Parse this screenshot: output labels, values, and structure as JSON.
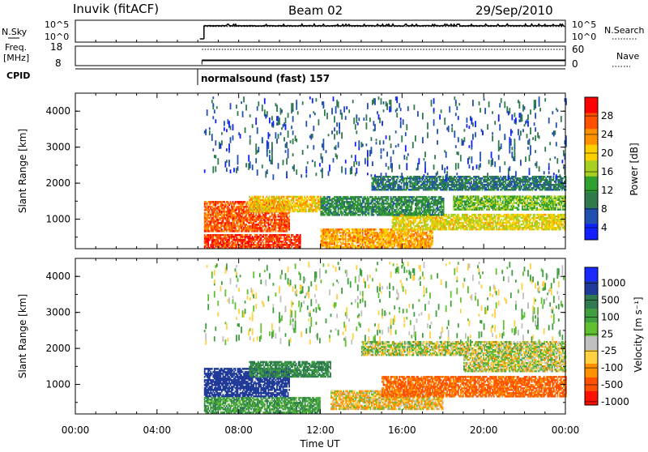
{
  "header": {
    "station": "Inuvik (fitACF)",
    "beam": "Beam 02",
    "date": "29/Sep/2010"
  },
  "summary": {
    "nsky_label": "N.Sky",
    "nsky_ticks": [
      "10^5",
      "10^0"
    ],
    "freq_label": "Freq.",
    "freq_unit": "[MHz]",
    "freq_ticks": [
      "18",
      "8"
    ],
    "cpid_label": "CPID",
    "nsearch_label": "N.Search",
    "nsearch_ticks": [
      "10^5",
      "10^0"
    ],
    "nave_label": "Nave",
    "nave_ticks": [
      "60",
      "0"
    ],
    "cpid_text": "normalsound (fast) 157"
  },
  "axes": {
    "x_ticks": [
      "00:00",
      "04:00",
      "08:00",
      "12:00",
      "16:00",
      "20:00",
      "00:00"
    ],
    "xlabel": "Time UT",
    "ylabel": "Slant Range [km]",
    "y_ticks": [
      "1000",
      "2000",
      "3000",
      "4000"
    ]
  },
  "colorbars": {
    "power": {
      "label": "Power [dB]",
      "ticks": [
        "28",
        "24",
        "20",
        "16",
        "12",
        "8",
        "4"
      ],
      "colors": [
        "#ff0000",
        "#ff5000",
        "#ff9000",
        "#ffd000",
        "#a8d020",
        "#30a030",
        "#2e7a4a",
        "#2050b0",
        "#1020ff"
      ]
    },
    "velocity": {
      "label": "Velocity [m s⁻¹]",
      "ticks": [
        "1000",
        "500",
        "100",
        "25",
        "-25",
        "-100",
        "-500",
        "-1000"
      ],
      "colors": [
        "#1a2aff",
        "#203a9a",
        "#2f7a50",
        "#40a040",
        "#60c030",
        "#c0c0c0",
        "#ffd040",
        "#ff9000",
        "#ff5000",
        "#ff1000"
      ]
    }
  },
  "chart_data": [
    {
      "type": "line",
      "title": "N.Sky / N.Search",
      "x": [
        "00:00",
        "06:00",
        "06:30",
        "08:00",
        "12:00",
        "16:00",
        "20:00",
        "00:00"
      ],
      "series": [
        {
          "name": "N.Sky",
          "values": [
            null,
            1,
            30000,
            20000,
            20000,
            20000,
            25000,
            25000
          ]
        },
        {
          "name": "N.Search",
          "values": [
            null,
            null,
            10000,
            10000,
            10000,
            10000,
            10000,
            10000
          ]
        }
      ],
      "ylim": [
        1,
        100000
      ]
    },
    {
      "type": "line",
      "x": [
        "00:00",
        "06:00",
        "06:30",
        "08:00",
        "12:00",
        "16:00",
        "20:00",
        "00:00"
      ],
      "series": [
        {
          "name": "Freq.",
          "values": [
            null,
            10,
            10.5,
            10.5,
            10.5,
            10.5,
            10.5,
            10.5
          ]
        },
        {
          "name": "Nave",
          "values": [
            null,
            5,
            52,
            52,
            52,
            52,
            52,
            52
          ]
        }
      ],
      "ylim_freq": [
        8,
        18
      ],
      "ylim_nave": [
        0,
        60
      ]
    },
    {
      "type": "heatmap",
      "title": "Power",
      "xlabel": "Time UT",
      "ylabel": "Slant Range [km]",
      "xlim_hours": [
        0,
        24
      ],
      "ylim_km": [
        180,
        4500
      ],
      "data_start_hour": 6.3,
      "bands": [
        {
          "t0": 6.3,
          "t1": 10.5,
          "r0": 650,
          "r1": 1500,
          "value": 26
        },
        {
          "t0": 8.5,
          "t1": 12.0,
          "r0": 1200,
          "r1": 1650,
          "value": 20
        },
        {
          "t0": 6.3,
          "t1": 11.0,
          "r0": 180,
          "r1": 550,
          "value": 28
        },
        {
          "t0": 12.0,
          "t1": 17.5,
          "r0": 200,
          "r1": 700,
          "value": 22
        },
        {
          "t0": 15.5,
          "t1": 24.0,
          "r0": 700,
          "r1": 1150,
          "value": 18
        },
        {
          "t0": 18.5,
          "t1": 24.0,
          "r0": 1250,
          "r1": 1650,
          "value": 14
        },
        {
          "t0": 12.0,
          "t1": 18.0,
          "r0": 1100,
          "r1": 1600,
          "value": 10
        },
        {
          "t0": 14.5,
          "t1": 24.0,
          "r0": 1800,
          "r1": 2200,
          "value": 8
        },
        {
          "t0": 6.3,
          "t1": 24.0,
          "r0": 2200,
          "r1": 4400,
          "value": 6
        }
      ],
      "zlim": [
        0,
        30
      ]
    },
    {
      "type": "heatmap",
      "title": "Velocity",
      "xlabel": "Time UT",
      "ylabel": "Slant Range [km]",
      "xlim_hours": [
        0,
        24
      ],
      "ylim_km": [
        180,
        4500
      ],
      "data_start_hour": 6.3,
      "bands": [
        {
          "t0": 6.3,
          "t1": 10.5,
          "r0": 650,
          "r1": 1450,
          "value": 800
        },
        {
          "t0": 6.3,
          "t1": 12.0,
          "r0": 200,
          "r1": 650,
          "value": 200
        },
        {
          "t0": 8.5,
          "t1": 12.5,
          "r0": 1200,
          "r1": 1650,
          "value": 300
        },
        {
          "t0": 12.5,
          "t1": 18.0,
          "r0": 300,
          "r1": 800,
          "value": -80
        },
        {
          "t0": 15.0,
          "t1": 24.0,
          "r0": 650,
          "r1": 1200,
          "value": -300
        },
        {
          "t0": 19.0,
          "t1": 24.0,
          "r0": 1350,
          "r1": 1800,
          "value": 0
        },
        {
          "t0": 14.0,
          "t1": 24.0,
          "r0": 1800,
          "r1": 2200,
          "value": 10
        },
        {
          "t0": 6.3,
          "t1": 24.0,
          "r0": 2200,
          "r1": 4400,
          "value": 50
        }
      ],
      "zlim": [
        -1000,
        1000
      ]
    }
  ]
}
